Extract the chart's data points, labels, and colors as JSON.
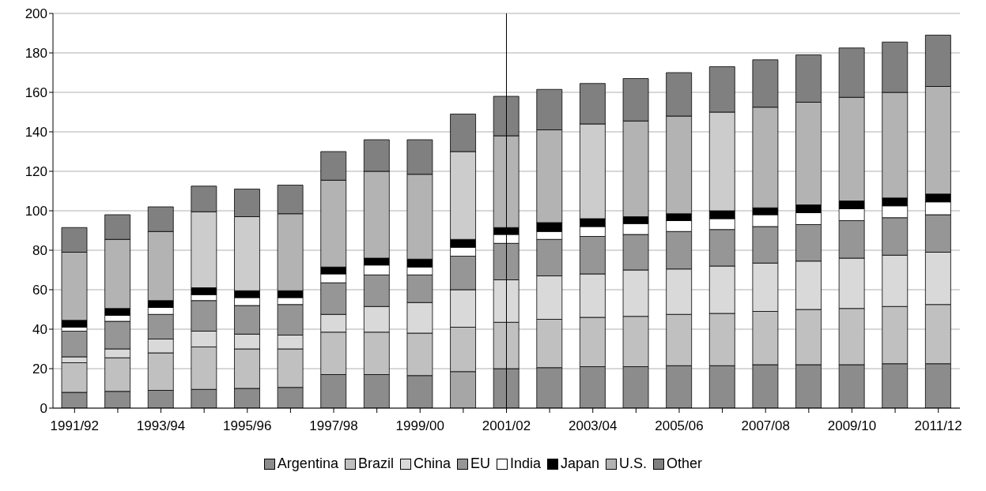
{
  "chart_data": {
    "type": "bar",
    "stacked": true,
    "categories": [
      "1991/92",
      null,
      "1993/94",
      null,
      "1995/96",
      null,
      "1997/98",
      null,
      "1999/00",
      null,
      "2001/02",
      null,
      "2003/04",
      null,
      "2005/06",
      null,
      "2007/08",
      null,
      "2009/10",
      null,
      "2011/12"
    ],
    "series": [
      {
        "name": "Argentina",
        "color": "#8c8c8c",
        "colors": [
          "#8c8c8c",
          "#8c8c8c",
          "#8c8c8c",
          "#8c8c8c",
          "#8c8c8c",
          "#8c8c8c",
          "#8c8c8c",
          "#8c8c8c",
          "#8c8c8c",
          "#a6a6a6",
          "#8c8c8c",
          "#8c8c8c",
          "#8c8c8c",
          "#8c8c8c",
          "#8c8c8c",
          "#8c8c8c",
          "#8c8c8c",
          "#8c8c8c",
          "#8c8c8c",
          "#8c8c8c",
          "#8c8c8c"
        ],
        "values": [
          8,
          8.5,
          9,
          9.5,
          10,
          10.5,
          17,
          17,
          16.5,
          18.5,
          20,
          20.5,
          21,
          21,
          21.5,
          21.5,
          22,
          22,
          22,
          22.5,
          22.5
        ]
      },
      {
        "name": "Brazil",
        "color": "#c0c0c0",
        "values": [
          15,
          17,
          19,
          21.5,
          20,
          19.5,
          21.5,
          21.5,
          21.5,
          22.5,
          23.5,
          24.5,
          25,
          25.5,
          26,
          26.5,
          27,
          28,
          28.5,
          29,
          30
        ]
      },
      {
        "name": "China",
        "color": "#d9d9d9",
        "values": [
          3,
          4.5,
          7,
          8,
          7.5,
          7,
          9,
          13,
          15.5,
          19,
          21.5,
          22,
          22,
          23.5,
          23,
          24,
          24.5,
          24.5,
          25.5,
          26,
          26.5
        ]
      },
      {
        "name": "EU",
        "color": "#969696",
        "values": [
          13,
          14,
          12.5,
          15.5,
          14.5,
          15.5,
          16,
          16,
          14,
          17,
          18.5,
          18.5,
          19,
          18,
          19,
          18.5,
          18.5,
          18.5,
          19,
          19,
          19
        ]
      },
      {
        "name": "India",
        "color": "#ffffff",
        "values": [
          2,
          3,
          3.5,
          3,
          4,
          3.5,
          4.5,
          5,
          4,
          4.5,
          4.5,
          4,
          5,
          5.5,
          5.5,
          5.5,
          6,
          6,
          6,
          6,
          6.5
        ]
      },
      {
        "name": "Japan",
        "color": "#000000",
        "values": [
          3.5,
          3.5,
          3.5,
          3.5,
          3.5,
          3.5,
          3.5,
          3.5,
          4,
          4,
          3.5,
          4.5,
          4,
          3.5,
          3.5,
          4,
          3.5,
          4,
          4,
          4,
          4
        ]
      },
      {
        "name": "U.S.",
        "color": "#b3b3b3",
        "colors": [
          "#b3b3b3",
          "#b3b3b3",
          "#b3b3b3",
          "#cccccc",
          "#cccccc",
          "#b3b3b3",
          "#b3b3b3",
          "#b3b3b3",
          "#b3b3b3",
          "#cccccc",
          "#b3b3b3",
          "#b3b3b3",
          "#cccccc",
          "#b3b3b3",
          "#b3b3b3",
          "#cccccc",
          "#b3b3b3",
          "#b3b3b3",
          "#b3b3b3",
          "#b3b3b3",
          "#b3b3b3"
        ],
        "values": [
          34.5,
          35,
          35,
          38.5,
          37.5,
          39,
          44,
          44,
          43,
          44.5,
          46.5,
          47,
          48,
          48.5,
          49.5,
          50,
          51,
          52,
          52.5,
          53.5,
          54.5
        ]
      },
      {
        "name": "Other",
        "color": "#808080",
        "values": [
          12.5,
          12.5,
          12.5,
          13,
          14,
          14.5,
          14.5,
          16,
          17.5,
          19,
          20,
          20.5,
          20.5,
          21.5,
          22,
          23,
          24,
          24,
          25,
          25.5,
          26
        ]
      }
    ],
    "ylim": [
      0,
      200
    ],
    "yticks": [
      0,
      20,
      40,
      60,
      80,
      100,
      120,
      140,
      160,
      180,
      200
    ],
    "grid": "y",
    "legend": "bottom",
    "ref_lines": [
      {
        "axis": "x",
        "value": "2001/02",
        "color": "#000000"
      }
    ]
  }
}
